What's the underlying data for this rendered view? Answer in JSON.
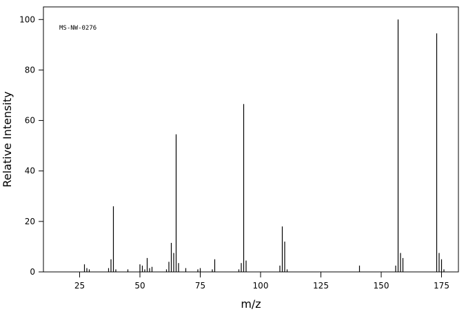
{
  "chart_data": {
    "type": "spectrum",
    "annotation": "MS-NW-0276",
    "x_label": "m/z",
    "y_label": "Relative Intensity",
    "color": "#000000",
    "x": [
      27,
      28,
      29,
      37,
      38,
      39,
      40,
      45,
      50,
      51,
      52,
      53,
      54,
      55,
      61,
      62,
      63,
      64,
      65,
      66,
      69,
      74,
      75,
      80,
      81,
      91,
      92,
      93,
      94,
      108,
      109,
      110,
      111,
      141,
      156,
      157,
      158,
      159,
      173,
      174,
      175,
      176
    ],
    "values": [
      3,
      1.5,
      1,
      1.5,
      5,
      26,
      1,
      1,
      3,
      2.5,
      1,
      5.5,
      1.5,
      2,
      1,
      4,
      11.5,
      7.5,
      54.5,
      3.5,
      1.5,
      1,
      1.5,
      1,
      5,
      1,
      3.5,
      66.5,
      4.5,
      2.5,
      18,
      12,
      1,
      2.5,
      2.5,
      100,
      7.5,
      5.5,
      94.5,
      7.5,
      5,
      1
    ],
    "xlim": [
      10,
      182
    ],
    "ylim": [
      0,
      105
    ],
    "xticks": [
      25,
      50,
      75,
      100,
      125,
      150,
      175
    ],
    "yticks": [
      0,
      20,
      40,
      60,
      80,
      100
    ]
  }
}
